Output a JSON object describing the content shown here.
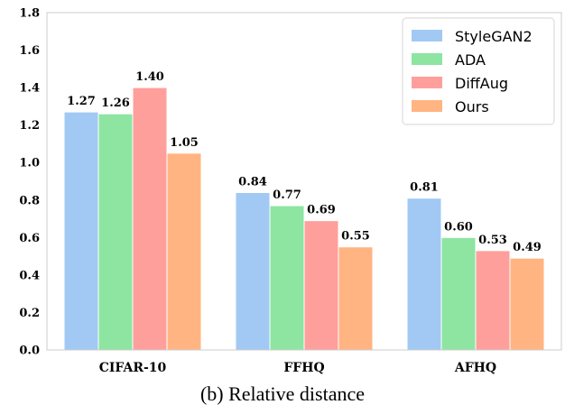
{
  "caption": "(b) Relative distance",
  "chart_data": {
    "type": "bar",
    "categories": [
      "CIFAR-10",
      "FFHQ",
      "AFHQ"
    ],
    "series": [
      {
        "name": "StyleGAN2",
        "values": [
          1.27,
          0.84,
          0.81
        ],
        "color": "#a1c9f4",
        "labels": [
          "1.27",
          "0.84",
          "0.81"
        ]
      },
      {
        "name": "ADA",
        "values": [
          1.26,
          0.77,
          0.6
        ],
        "color": "#8de5a1",
        "labels": [
          "1.26",
          "0.77",
          "0.60"
        ]
      },
      {
        "name": "DiffAug",
        "values": [
          1.4,
          0.69,
          0.53
        ],
        "color": "#ff9f9b",
        "labels": [
          "1.40",
          "0.69",
          "0.53"
        ]
      },
      {
        "name": "Ours",
        "values": [
          1.05,
          0.55,
          0.49
        ],
        "color": "#ffb482",
        "labels": [
          "1.05",
          "0.55",
          "0.49"
        ]
      }
    ],
    "yticks": [
      "0.0",
      "0.2",
      "0.4",
      "0.6",
      "0.8",
      "1.0",
      "1.2",
      "1.4",
      "1.6",
      "1.8"
    ],
    "ylim": [
      0,
      1.8
    ],
    "legend_position": "top-right",
    "grid": false
  }
}
